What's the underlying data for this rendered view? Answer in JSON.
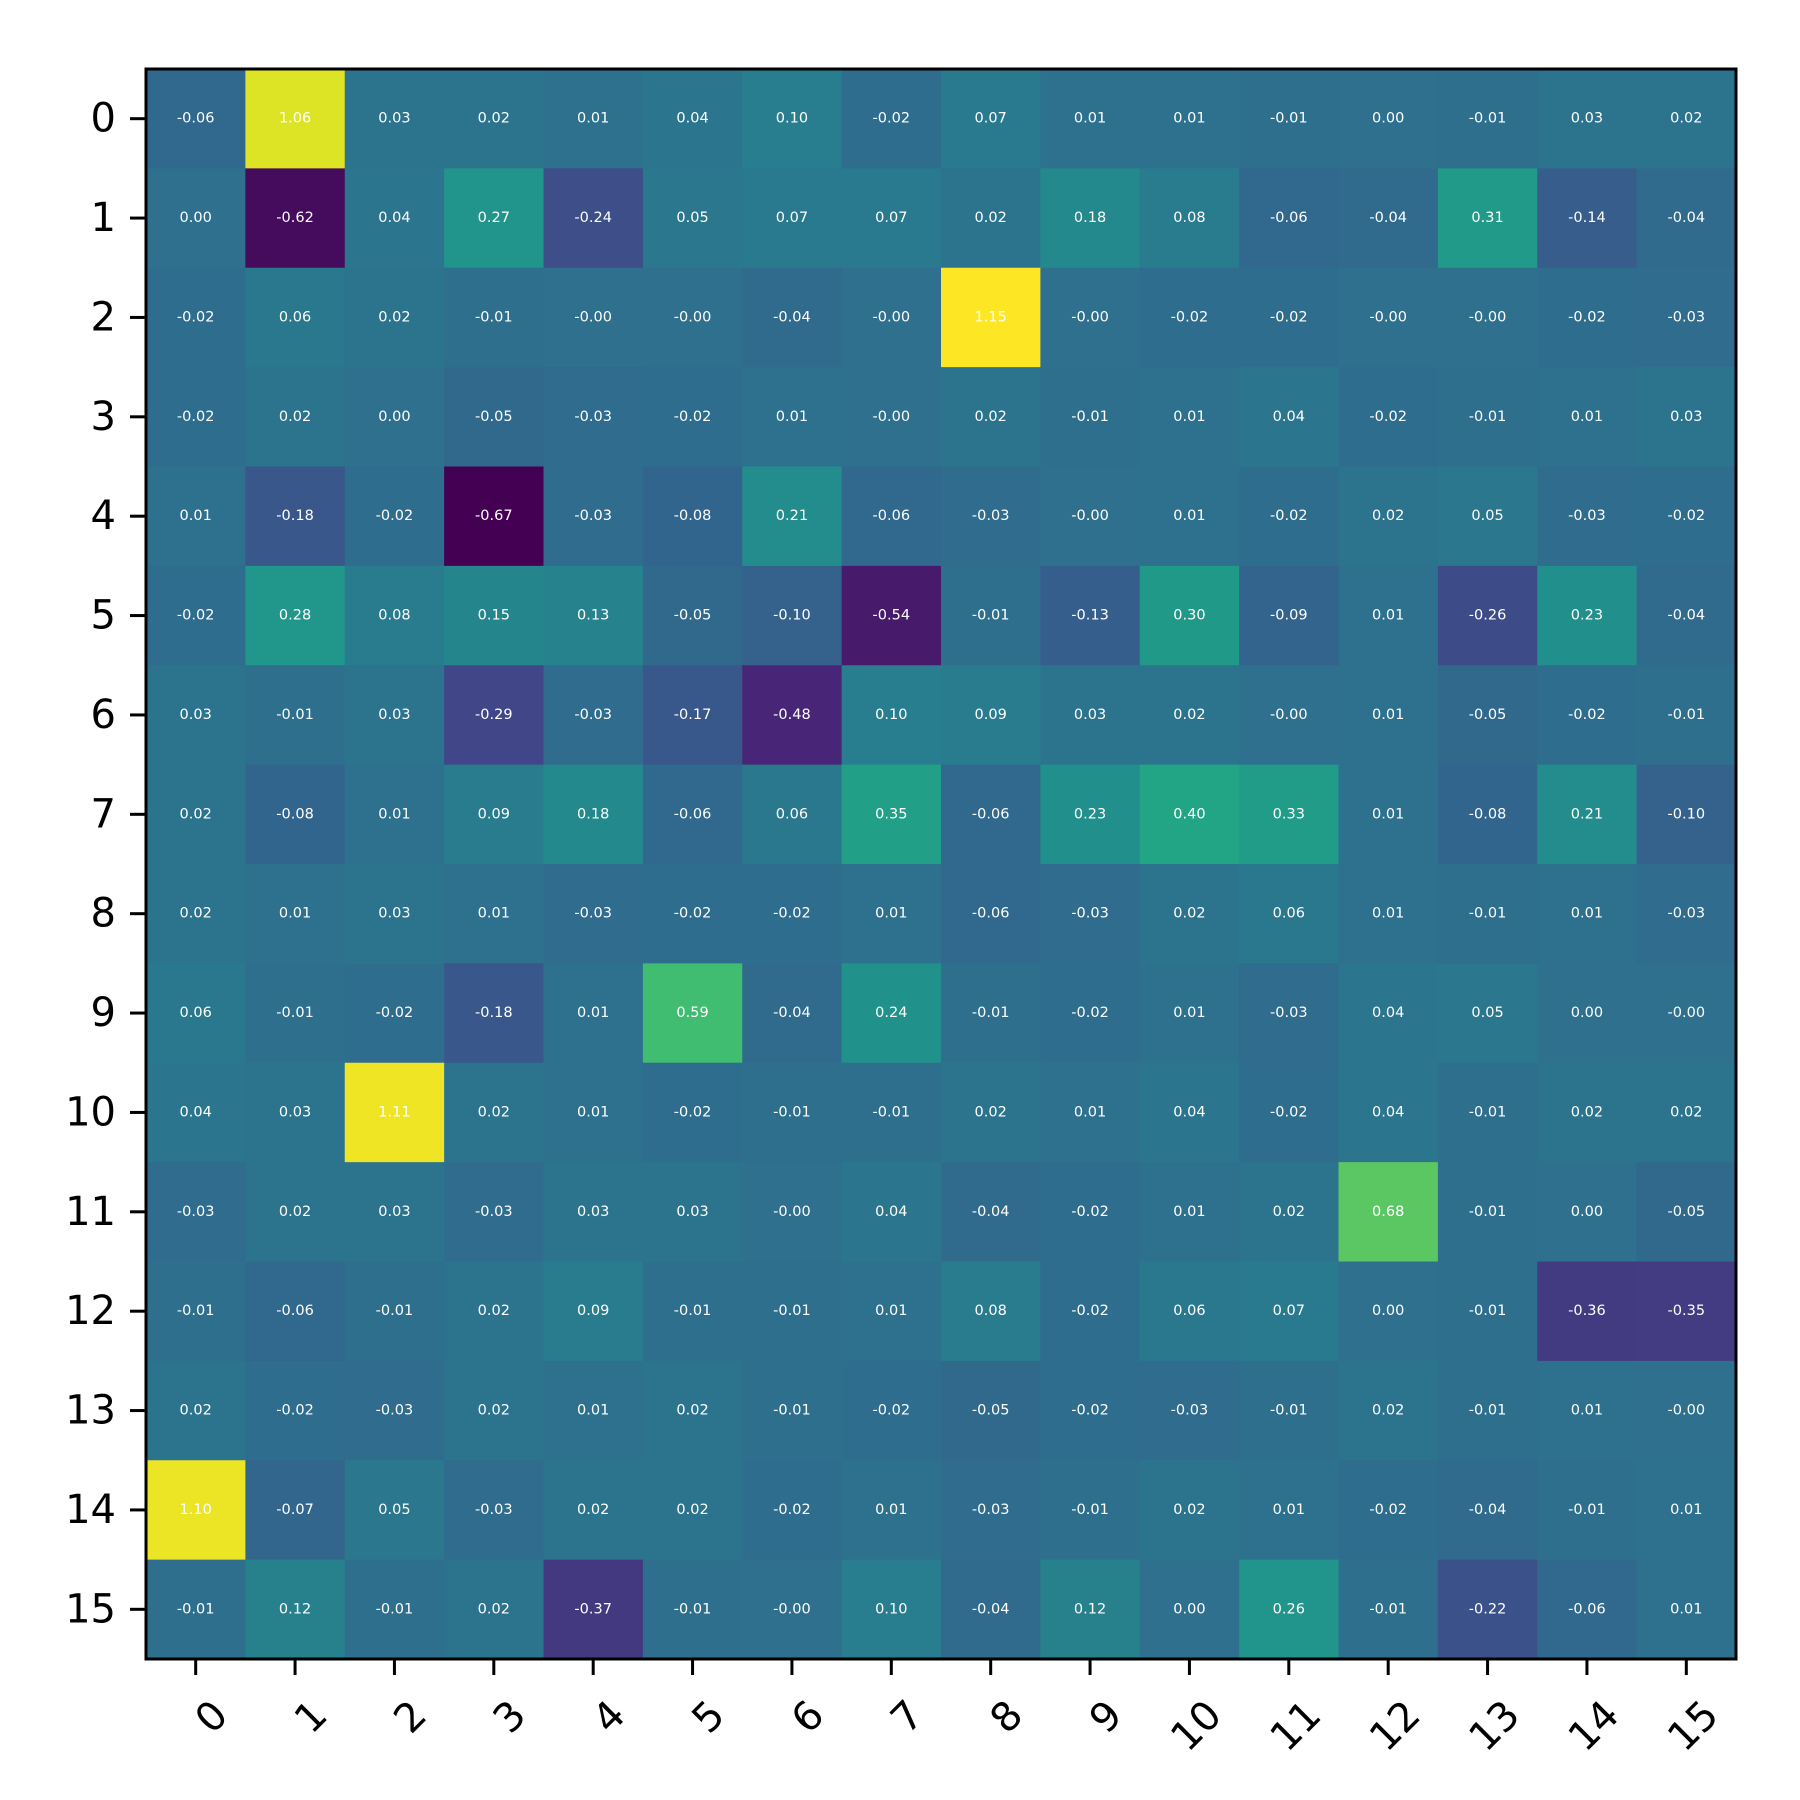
{
  "chart_data": {
    "type": "heatmap",
    "title": "",
    "xlabel": "",
    "ylabel": "",
    "x_categories": [
      "0",
      "1",
      "2",
      "3",
      "4",
      "5",
      "6",
      "7",
      "8",
      "9",
      "10",
      "11",
      "12",
      "13",
      "14",
      "15"
    ],
    "y_categories": [
      "0",
      "1",
      "2",
      "3",
      "4",
      "5",
      "6",
      "7",
      "8",
      "9",
      "10",
      "11",
      "12",
      "13",
      "14",
      "15"
    ],
    "colormap": "viridis",
    "value_range": [
      -0.67,
      1.15
    ],
    "annotation_color": "#ffffff",
    "annotation_format": "2 decimals",
    "values": [
      [
        -0.06,
        1.06,
        0.03,
        0.02,
        0.01,
        0.04,
        0.1,
        -0.02,
        0.07,
        0.01,
        0.01,
        -0.01,
        0.0,
        -0.01,
        0.03,
        0.02
      ],
      [
        0.0,
        -0.62,
        0.04,
        0.27,
        -0.24,
        0.05,
        0.07,
        0.07,
        0.02,
        0.18,
        0.08,
        -0.06,
        -0.04,
        0.31,
        -0.14,
        -0.04
      ],
      [
        -0.02,
        0.06,
        0.02,
        -0.01,
        -0.0,
        -0.0,
        -0.04,
        -0.0,
        1.15,
        -0.0,
        -0.02,
        -0.02,
        -0.0,
        -0.0,
        -0.02,
        -0.03
      ],
      [
        -0.02,
        0.02,
        0.0,
        -0.05,
        -0.03,
        -0.02,
        0.01,
        -0.0,
        0.02,
        -0.01,
        0.01,
        0.04,
        -0.02,
        -0.01,
        0.01,
        0.03
      ],
      [
        0.01,
        -0.18,
        -0.02,
        -0.67,
        -0.03,
        -0.08,
        0.21,
        -0.06,
        -0.03,
        -0.0,
        0.01,
        -0.02,
        0.02,
        0.05,
        -0.03,
        -0.02
      ],
      [
        -0.02,
        0.28,
        0.08,
        0.15,
        0.13,
        -0.05,
        -0.1,
        -0.54,
        -0.01,
        -0.13,
        0.3,
        -0.09,
        0.01,
        -0.26,
        0.23,
        -0.04
      ],
      [
        0.03,
        -0.01,
        0.03,
        -0.29,
        -0.03,
        -0.17,
        -0.48,
        0.1,
        0.09,
        0.03,
        0.02,
        -0.0,
        0.01,
        -0.05,
        -0.02,
        -0.01
      ],
      [
        0.02,
        -0.08,
        0.01,
        0.09,
        0.18,
        -0.06,
        0.06,
        0.35,
        -0.06,
        0.23,
        0.4,
        0.33,
        0.01,
        -0.08,
        0.21,
        -0.1
      ],
      [
        0.02,
        0.01,
        0.03,
        0.01,
        -0.03,
        -0.02,
        -0.02,
        0.01,
        -0.06,
        -0.03,
        0.02,
        0.06,
        0.01,
        -0.01,
        0.01,
        -0.03
      ],
      [
        0.06,
        -0.01,
        -0.02,
        -0.18,
        0.01,
        0.59,
        -0.04,
        0.24,
        -0.01,
        -0.02,
        0.01,
        -0.03,
        0.04,
        0.05,
        0.0,
        -0.0
      ],
      [
        0.04,
        0.03,
        1.11,
        0.02,
        0.01,
        -0.02,
        -0.01,
        -0.01,
        0.02,
        0.01,
        0.04,
        -0.02,
        0.04,
        -0.01,
        0.02,
        0.02
      ],
      [
        -0.03,
        0.02,
        0.03,
        -0.03,
        0.03,
        0.03,
        -0.0,
        0.04,
        -0.04,
        -0.02,
        0.01,
        0.02,
        0.68,
        -0.01,
        0.0,
        -0.05
      ],
      [
        -0.01,
        -0.06,
        -0.01,
        0.02,
        0.09,
        -0.01,
        -0.01,
        0.01,
        0.08,
        -0.02,
        0.06,
        0.07,
        0.0,
        -0.01,
        -0.36,
        -0.35
      ],
      [
        0.02,
        -0.02,
        -0.03,
        0.02,
        0.01,
        0.02,
        -0.01,
        -0.02,
        -0.05,
        -0.02,
        -0.03,
        -0.01,
        0.02,
        -0.01,
        0.01,
        -0.0
      ],
      [
        1.1,
        -0.07,
        0.05,
        -0.03,
        0.02,
        0.02,
        -0.02,
        0.01,
        -0.03,
        -0.01,
        0.02,
        0.01,
        -0.02,
        -0.04,
        -0.01,
        0.01
      ],
      [
        -0.01,
        0.12,
        -0.01,
        0.02,
        -0.37,
        -0.01,
        -0.0,
        0.1,
        -0.04,
        0.12,
        0.0,
        0.26,
        -0.01,
        -0.22,
        -0.06,
        0.01
      ]
    ]
  }
}
